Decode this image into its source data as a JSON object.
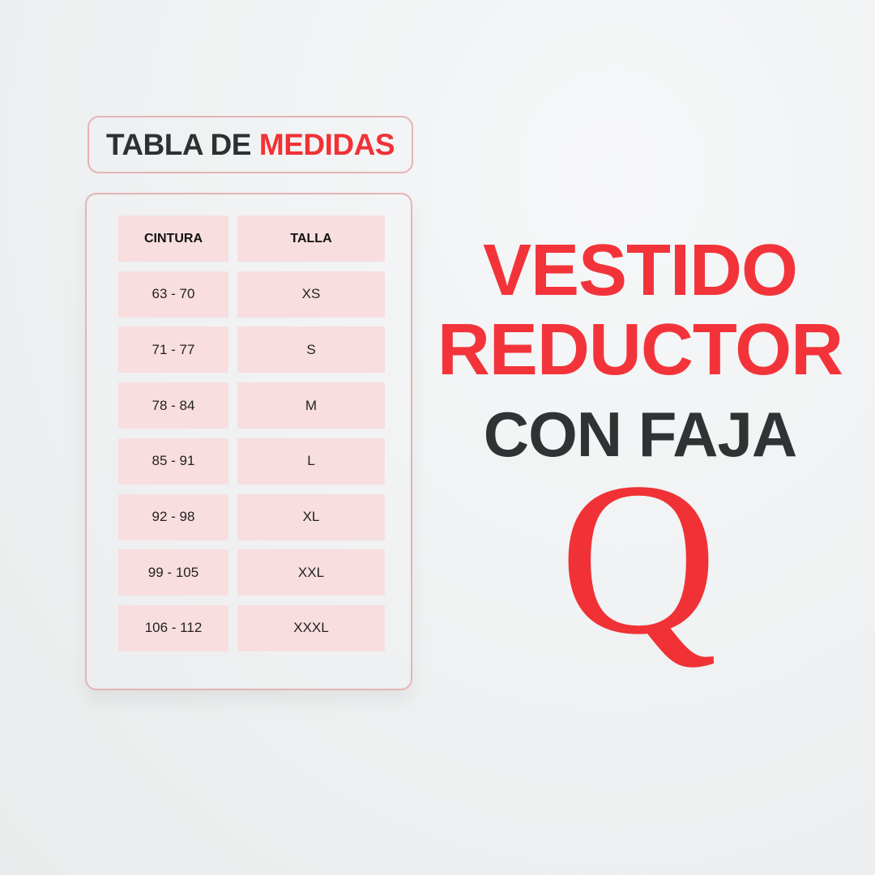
{
  "title": {
    "part1": "TABLA DE",
    "part2": "MEDIDAS"
  },
  "table": {
    "headers": [
      "CINTURA",
      "TALLA"
    ],
    "rows": [
      [
        "63 - 70",
        "XS"
      ],
      [
        "71 - 77",
        "S"
      ],
      [
        "78 - 84",
        "M"
      ],
      [
        "85 - 91",
        "L"
      ],
      [
        "92 - 98",
        "XL"
      ],
      [
        "99 - 105",
        "XXL"
      ],
      [
        "106 - 112",
        "XXXL"
      ]
    ]
  },
  "headline": {
    "line1": "VESTIDO",
    "line2": "REDUCTOR",
    "line3": "CON FAJA"
  },
  "logo": {
    "text": "Q"
  },
  "colors": {
    "accent": "#f2343a",
    "dark": "#303234",
    "cell": "#f8dedf",
    "border": "#e6b3b3"
  }
}
